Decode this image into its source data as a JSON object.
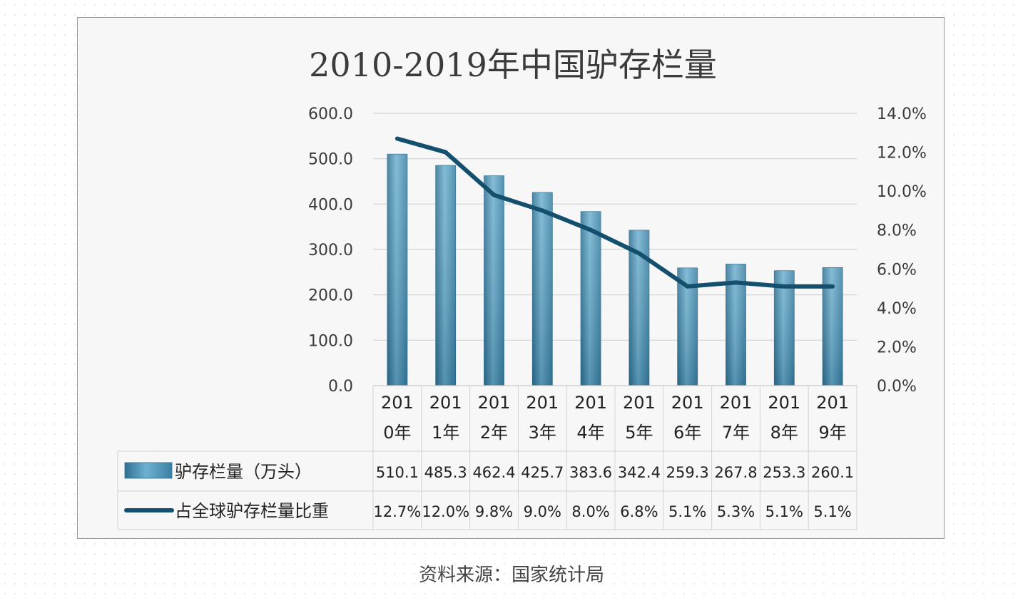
{
  "chart_data": {
    "type": "bar",
    "title": "2010-2019年中国驴存栏量",
    "categories": [
      "2010年",
      "2011年",
      "2012年",
      "2013年",
      "2014年",
      "2015年",
      "2016年",
      "2017年",
      "2018年",
      "2019年"
    ],
    "category_lines": [
      [
        "201",
        "0年"
      ],
      [
        "201",
        "1年"
      ],
      [
        "201",
        "2年"
      ],
      [
        "201",
        "3年"
      ],
      [
        "201",
        "4年"
      ],
      [
        "201",
        "5年"
      ],
      [
        "201",
        "6年"
      ],
      [
        "201",
        "7年"
      ],
      [
        "201",
        "8年"
      ],
      [
        "201",
        "9年"
      ]
    ],
    "series": [
      {
        "name": "驴存栏量（万头）",
        "kind": "bar",
        "axis": "left",
        "values": [
          510.1,
          485.3,
          462.4,
          425.7,
          383.6,
          342.4,
          259.3,
          267.8,
          253.3,
          260.1
        ],
        "labels": [
          "510.1",
          "485.3",
          "462.4",
          "425.7",
          "383.6",
          "342.4",
          "259.3",
          "267.8",
          "253.3",
          "260.1"
        ]
      },
      {
        "name": "占全球驴存栏量比重",
        "kind": "line",
        "axis": "right",
        "values": [
          12.7,
          12.0,
          9.8,
          9.0,
          8.0,
          6.8,
          5.1,
          5.3,
          5.1,
          5.1
        ],
        "labels": [
          "12.7%",
          "12.0%",
          "9.8%",
          "9.0%",
          "8.0%",
          "6.8%",
          "5.1%",
          "5.3%",
          "5.1%",
          "5.1%"
        ]
      }
    ],
    "y_left": {
      "min": 0,
      "max": 600,
      "step": 100,
      "ticks": [
        "0.0",
        "100.0",
        "200.0",
        "300.0",
        "400.0",
        "500.0",
        "600.0"
      ]
    },
    "y_right": {
      "min": 0,
      "max": 14,
      "step": 2,
      "ticks": [
        "0.0%",
        "2.0%",
        "4.0%",
        "6.0%",
        "8.0%",
        "10.0%",
        "12.0%",
        "14.0%"
      ]
    },
    "grid": true,
    "legend": "data-table"
  },
  "colors": {
    "bar": "#4f97ba",
    "bar_dark": "#2f6f91",
    "line": "#14506e"
  },
  "source": "资料来源：国家统计局"
}
